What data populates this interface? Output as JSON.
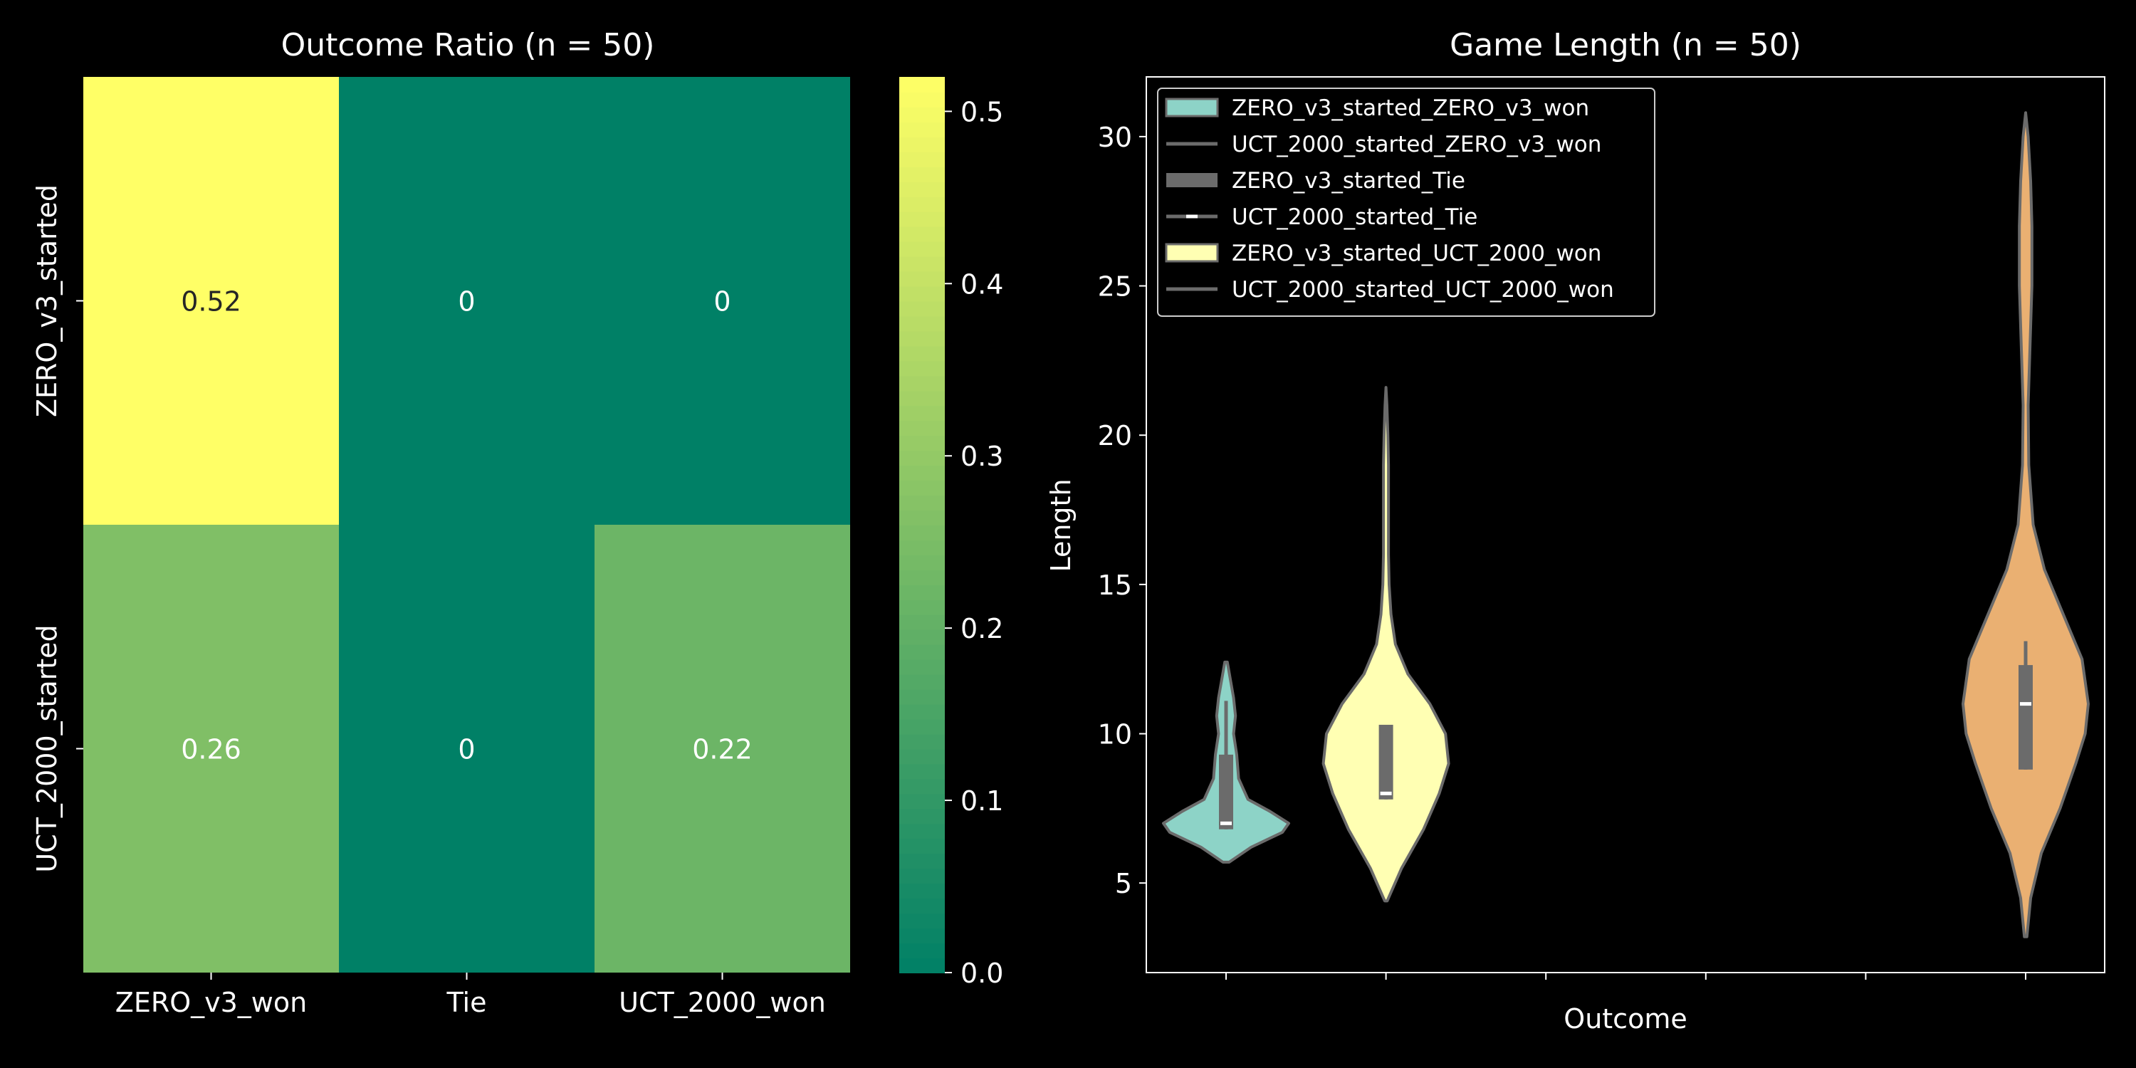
{
  "chart_data": [
    {
      "type": "heatmap",
      "title": "Outcome Ratio (n = 50)",
      "rows": [
        "ZERO_v3_started",
        "UCT_2000_started"
      ],
      "columns": [
        "ZERO_v3_won",
        "Tie",
        "UCT_2000_won"
      ],
      "values": [
        [
          0.52,
          0,
          0
        ],
        [
          0.26,
          0,
          0.22
        ]
      ],
      "value_labels": [
        [
          "0.52",
          "0",
          "0"
        ],
        [
          "0.26",
          "0",
          "0.22"
        ]
      ],
      "colormap": "summer",
      "vmin": 0.0,
      "vmax": 0.52,
      "colorbar_ticks": [
        "0.0",
        "0.1",
        "0.2",
        "0.3",
        "0.4",
        "0.5"
      ],
      "colorbar_tick_values": [
        0.0,
        0.1,
        0.2,
        0.3,
        0.4,
        0.5
      ]
    },
    {
      "type": "violin",
      "title": "Game Length (n = 50)",
      "xlabel": "Outcome",
      "ylabel": "Length",
      "ylim": [
        2,
        32
      ],
      "yticks": [
        "5",
        "10",
        "15",
        "20",
        "25",
        "30"
      ],
      "ytick_values": [
        5,
        10,
        15,
        20,
        25,
        30
      ],
      "x_positions": 6,
      "legend_placement": "upper-left",
      "legend": [
        {
          "label": "ZERO_v3_started_ZERO_v3_won",
          "swatch": "patch",
          "color": "#8dd3c7"
        },
        {
          "label": "UCT_2000_started_ZERO_v3_won",
          "swatch": "line",
          "color": "#6b6b6b"
        },
        {
          "label": "ZERO_v3_started_Tie",
          "swatch": "thickline",
          "color": "#6b6b6b"
        },
        {
          "label": "UCT_2000_started_Tie",
          "swatch": "median",
          "color": "#6b6b6b"
        },
        {
          "label": "ZERO_v3_started_UCT_2000_won",
          "swatch": "patch",
          "color": "#ffffb3"
        },
        {
          "label": "UCT_2000_started_UCT_2000_won",
          "swatch": "line",
          "color": "#6b6b6b"
        }
      ],
      "violins": [
        {
          "position": 0,
          "color": "#8dd3c7",
          "min": 5.7,
          "max": 12.4,
          "q1": 6.8,
          "median": 7.0,
          "q3": 9.3,
          "whisker_low": 6.8,
          "whisker_high": 11.1,
          "density": [
            [
              5.7,
              0.05
            ],
            [
              6.2,
              0.4
            ],
            [
              6.7,
              0.9
            ],
            [
              7.0,
              1.0
            ],
            [
              7.4,
              0.7
            ],
            [
              7.8,
              0.35
            ],
            [
              8.5,
              0.2
            ],
            [
              9.3,
              0.17
            ],
            [
              10,
              0.12
            ],
            [
              10.6,
              0.15
            ],
            [
              11.2,
              0.12
            ],
            [
              11.8,
              0.07
            ],
            [
              12.4,
              0.02
            ]
          ]
        },
        {
          "position": 1,
          "color": "#ffffb3",
          "min": 4.4,
          "max": 21.6,
          "q1": 7.8,
          "median": 8.0,
          "q3": 10.3,
          "whisker_low": 7.8,
          "whisker_high": 10.3,
          "density": [
            [
              4.4,
              0.02
            ],
            [
              5.5,
              0.25
            ],
            [
              6.8,
              0.6
            ],
            [
              8,
              0.85
            ],
            [
              9,
              1.0
            ],
            [
              10,
              0.95
            ],
            [
              11,
              0.7
            ],
            [
              12,
              0.35
            ],
            [
              13,
              0.15
            ],
            [
              14,
              0.08
            ],
            [
              15,
              0.05
            ],
            [
              16,
              0.04
            ],
            [
              17,
              0.04
            ],
            [
              18,
              0.04
            ],
            [
              19,
              0.04
            ],
            [
              20,
              0.03
            ],
            [
              21,
              0.015
            ],
            [
              21.6,
              0.0
            ]
          ]
        },
        {
          "position": 5,
          "color": "#eab072",
          "min": 3.2,
          "max": 30.8,
          "q1": 8.8,
          "median": 11.0,
          "q3": 12.3,
          "whisker_low": 8.8,
          "whisker_high": 13.1,
          "density": [
            [
              3.2,
              0.02
            ],
            [
              4.5,
              0.08
            ],
            [
              6,
              0.25
            ],
            [
              7.5,
              0.55
            ],
            [
              9,
              0.8
            ],
            [
              10,
              0.95
            ],
            [
              11,
              1.0
            ],
            [
              12.5,
              0.9
            ],
            [
              14,
              0.6
            ],
            [
              15.5,
              0.3
            ],
            [
              17,
              0.12
            ],
            [
              19,
              0.05
            ],
            [
              21,
              0.04
            ],
            [
              23,
              0.07
            ],
            [
              25,
              0.1
            ],
            [
              27,
              0.1
            ],
            [
              28.5,
              0.08
            ],
            [
              30,
              0.04
            ],
            [
              30.8,
              0.0
            ]
          ]
        }
      ]
    }
  ]
}
